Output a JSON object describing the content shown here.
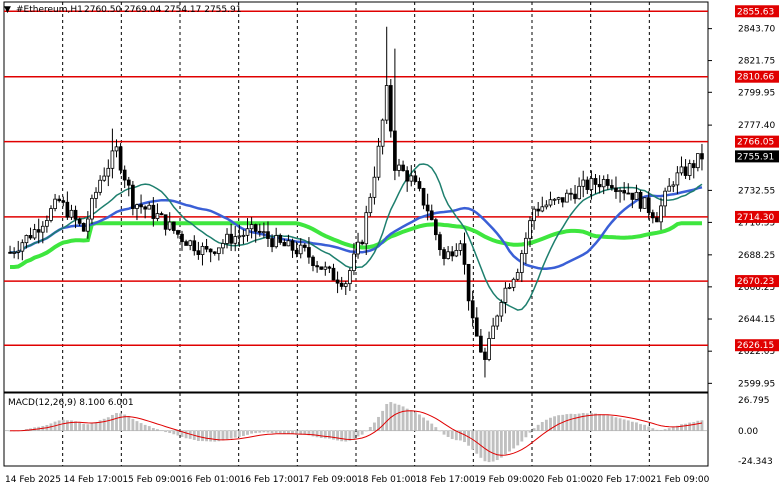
{
  "header": {
    "symbol_label": "#Ethereum,H1",
    "ohlc_text": "2760.50 2769.04 2754.17 2755.91"
  },
  "colors": {
    "candle": "#000000",
    "level": "#e00000",
    "ma_fast": "#1e7f6e",
    "ma_mid": "#3a5fd6",
    "ma_slow": "#3ee63e",
    "macd_hist": "#c0c0c0",
    "macd_signal": "#e00000",
    "grid": "#000000",
    "price_tag": "#000000",
    "level_tag": "#e00000"
  },
  "chart_data": {
    "type": "candlestick",
    "timeframe": "H1",
    "x_tick_labels": [
      "14 Feb 2025",
      "14 Feb 17:00",
      "15 Feb 09:00",
      "16 Feb 01:00",
      "16 Feb 17:00",
      "17 Feb 09:00",
      "18 Feb 01:00",
      "18 Feb 17:00",
      "19 Feb 09:00",
      "20 Feb 01:00",
      "20 Feb 17:00",
      "21 Feb 09:00"
    ],
    "y_tick_labels": [
      "2843.70",
      "2821.75",
      "2799.95",
      "2777.40",
      "2732.55",
      "2710.55",
      "2688.25",
      "2666.25",
      "2644.15",
      "2622.05",
      "2599.95"
    ],
    "ylim": [
      2594,
      2862
    ],
    "current_price": 2755.91,
    "current_price_label": "2755.91",
    "levels": [
      {
        "value": 2855.63,
        "label": "2855.63"
      },
      {
        "value": 2810.66,
        "label": "2810.66"
      },
      {
        "value": 2766.05,
        "label": "2766.05"
      },
      {
        "value": 2714.3,
        "label": "2714.30"
      },
      {
        "value": 2670.23,
        "label": "2670.23"
      },
      {
        "value": 2626.15,
        "label": "2626.15"
      }
    ],
    "macd": {
      "label": "MACD(12,26,9) 8.100 6.001",
      "tick_labels": [
        "26.795",
        "0.00",
        "-24.343"
      ],
      "ylim": [
        -27.0,
        29.0
      ]
    }
  }
}
